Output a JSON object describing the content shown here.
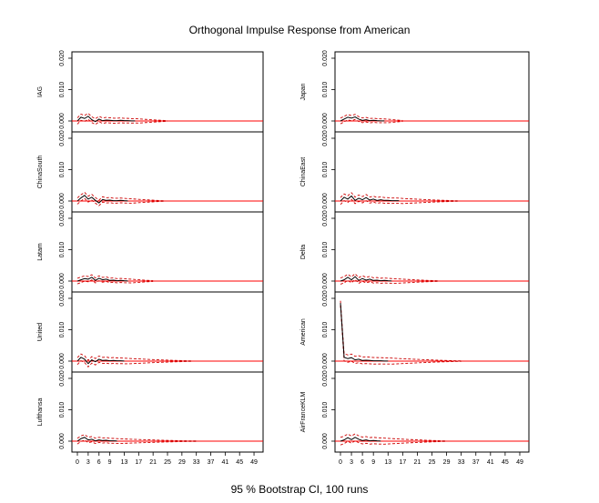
{
  "chart_data": {
    "type": "line",
    "title": "Orthogonal Impulse Response from American",
    "footer": "95 % Bootstrap CI,  100 runs",
    "x_tick_labels": [
      "0",
      "3",
      "6",
      "9",
      "13",
      "17",
      "21",
      "25",
      "29",
      "33",
      "37",
      "41",
      "45",
      "49"
    ],
    "x_range": [
      0,
      50
    ],
    "y_tick_labels": [
      "0.000",
      "0.010",
      "0.020"
    ],
    "y_range": [
      0,
      0.02
    ],
    "colors": {
      "irf": "#000000",
      "ci": "#cc0000",
      "zero": "#ff0000",
      "frame": "#000000"
    },
    "panels": [
      {
        "label": "IAG",
        "irf": [
          0,
          0.0012,
          0.0008,
          0.0015,
          0.0004,
          -0.0002,
          0.0006,
          0.0001,
          0.0003,
          0.0002,
          0.0001,
          0.0001,
          0.0002,
          0.0001,
          0.0001,
          5e-05,
          5e-05
        ],
        "ci_halfwidth": 0.001,
        "ci_len": 26
      },
      {
        "label": "Japan",
        "irf": [
          0,
          0.0006,
          0.0012,
          0.0009,
          0.0013,
          0.0006,
          0.0002,
          0.0004,
          0.0001,
          0.0002,
          0.0001,
          5e-05,
          5e-05
        ],
        "ci_halfwidth": 0.0009,
        "ci_len": 18
      },
      {
        "label": "ChinaSouth",
        "irf": [
          0,
          0.001,
          0.0018,
          0.0006,
          0.0012,
          0.0002,
          -0.0006,
          0.0005,
          0.0002,
          0.0003,
          0.0001,
          0.0001,
          0.0002,
          0.0001,
          5e-05
        ],
        "ci_halfwidth": 0.001,
        "ci_len": 25
      },
      {
        "label": "ChinaEast",
        "irf": [
          0,
          0.0012,
          0.0006,
          0.0016,
          0.0002,
          0.0009,
          0.0004,
          0.0011,
          0.0003,
          0.0006,
          0.0002,
          0.0004,
          0.0002,
          0.0002,
          0.0001,
          0.0001,
          0.0001
        ],
        "ci_halfwidth": 0.0011,
        "ci_len": 33
      },
      {
        "label": "Latam",
        "irf": [
          0,
          0.0004,
          0.0008,
          0.0006,
          0.0012,
          0.0002,
          0.0009,
          0.0004,
          0.0006,
          0.0002,
          0.0003,
          0.0001,
          0.0002,
          0.0001,
          5e-05
        ],
        "ci_halfwidth": 0.0009,
        "ci_len": 22
      },
      {
        "label": "Delta",
        "irf": [
          0,
          0.0004,
          0.0012,
          0.0004,
          0.0014,
          0.0002,
          0.0008,
          0.0003,
          0.0006,
          0.0002,
          0.0003,
          0.0001,
          0.0002,
          0.0001,
          5e-05
        ],
        "ci_halfwidth": 0.001,
        "ci_len": 28
      },
      {
        "label": "United",
        "irf": [
          0,
          0.0012,
          0.0006,
          -0.0008,
          0.0004,
          -0.0002,
          0.0006,
          0.0002,
          0.0003,
          0.0001,
          0.0002,
          0.0001,
          0.0001,
          5e-05
        ],
        "ci_halfwidth": 0.0011,
        "ci_len": 33
      },
      {
        "label": "American",
        "irf": [
          0.0185,
          0.0012,
          0.0008,
          0.0011,
          0.0004,
          0.0006,
          0.0002,
          0.0003,
          0.0002,
          0.0001,
          0.0001,
          0.0001,
          5e-05,
          5e-05
        ],
        "ci_halfwidth": 0.0012,
        "ci_len": 34
      },
      {
        "label": "Lufthansa",
        "irf": [
          0,
          0.0008,
          0.0012,
          0.0004,
          0.0006,
          0.0001,
          0.0004,
          0.0002,
          0.0003,
          0.0001,
          0.0001,
          5e-05
        ],
        "ci_halfwidth": 0.0009,
        "ci_len": 34
      },
      {
        "label": "AirFranceKLM",
        "irf": [
          0,
          0.0004,
          0.0011,
          0.0005,
          0.0012,
          0.0006,
          0.0002,
          0.0004,
          0.0001,
          0.0002,
          0.0001,
          5e-05
        ],
        "ci_halfwidth": 0.0012,
        "ci_len": 30
      }
    ]
  }
}
